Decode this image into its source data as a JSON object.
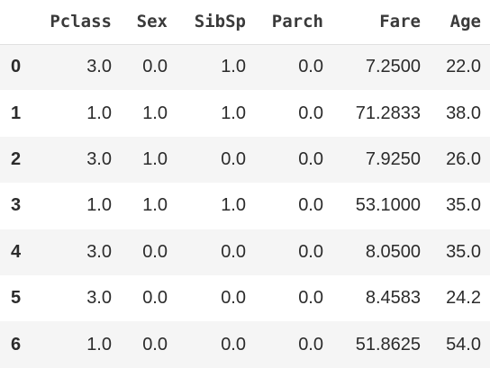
{
  "table": {
    "index_header": "",
    "columns": [
      "Pclass",
      "Sex",
      "SibSp",
      "Parch",
      "Fare",
      "Age"
    ],
    "rows": [
      {
        "index": "0",
        "cells": [
          "3.0",
          "0.0",
          "1.0",
          "0.0",
          "7.2500",
          "22.0"
        ]
      },
      {
        "index": "1",
        "cells": [
          "1.0",
          "1.0",
          "1.0",
          "0.0",
          "71.2833",
          "38.0"
        ]
      },
      {
        "index": "2",
        "cells": [
          "3.0",
          "1.0",
          "0.0",
          "0.0",
          "7.9250",
          "26.0"
        ]
      },
      {
        "index": "3",
        "cells": [
          "1.0",
          "1.0",
          "1.0",
          "0.0",
          "53.1000",
          "35.0"
        ]
      },
      {
        "index": "4",
        "cells": [
          "3.0",
          "0.0",
          "0.0",
          "0.0",
          "8.0500",
          "35.0"
        ]
      },
      {
        "index": "5",
        "cells": [
          "3.0",
          "0.0",
          "0.0",
          "0.0",
          "8.4583",
          "24.2"
        ]
      },
      {
        "index": "6",
        "cells": [
          "1.0",
          "0.0",
          "0.0",
          "0.0",
          "51.8625",
          "54.0"
        ]
      }
    ]
  }
}
